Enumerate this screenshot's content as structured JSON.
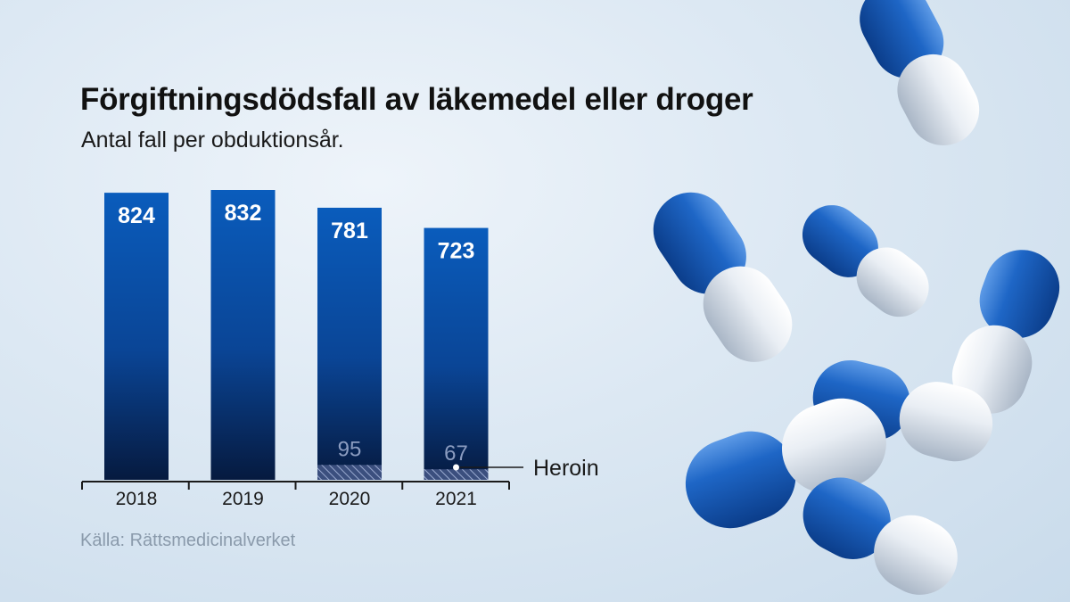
{
  "title": "Förgiftningsdödsfall av läkemedel eller droger",
  "subtitle": "Antal fall per obduktionsår.",
  "source": "Källa: Rättsmedicinalverket",
  "colors": {
    "bar_top": "#0a5cbc",
    "bar_bottom": "#061a3f",
    "heroin_hatch": "#7f90b8",
    "pill_blue": "#1e66c6",
    "pill_white": "#e9eef4"
  },
  "chart_data": {
    "type": "bar",
    "categories": [
      "2018",
      "2019",
      "2020",
      "2021"
    ],
    "series": [
      {
        "name": "",
        "values": [
          824,
          832,
          781,
          723
        ]
      },
      {
        "name": "Heroin",
        "values": [
          null,
          null,
          95,
          67
        ]
      }
    ],
    "ylim": [
      0,
      900
    ],
    "legend": {
      "label": "Heroin",
      "placement": "right"
    },
    "grid": false
  }
}
